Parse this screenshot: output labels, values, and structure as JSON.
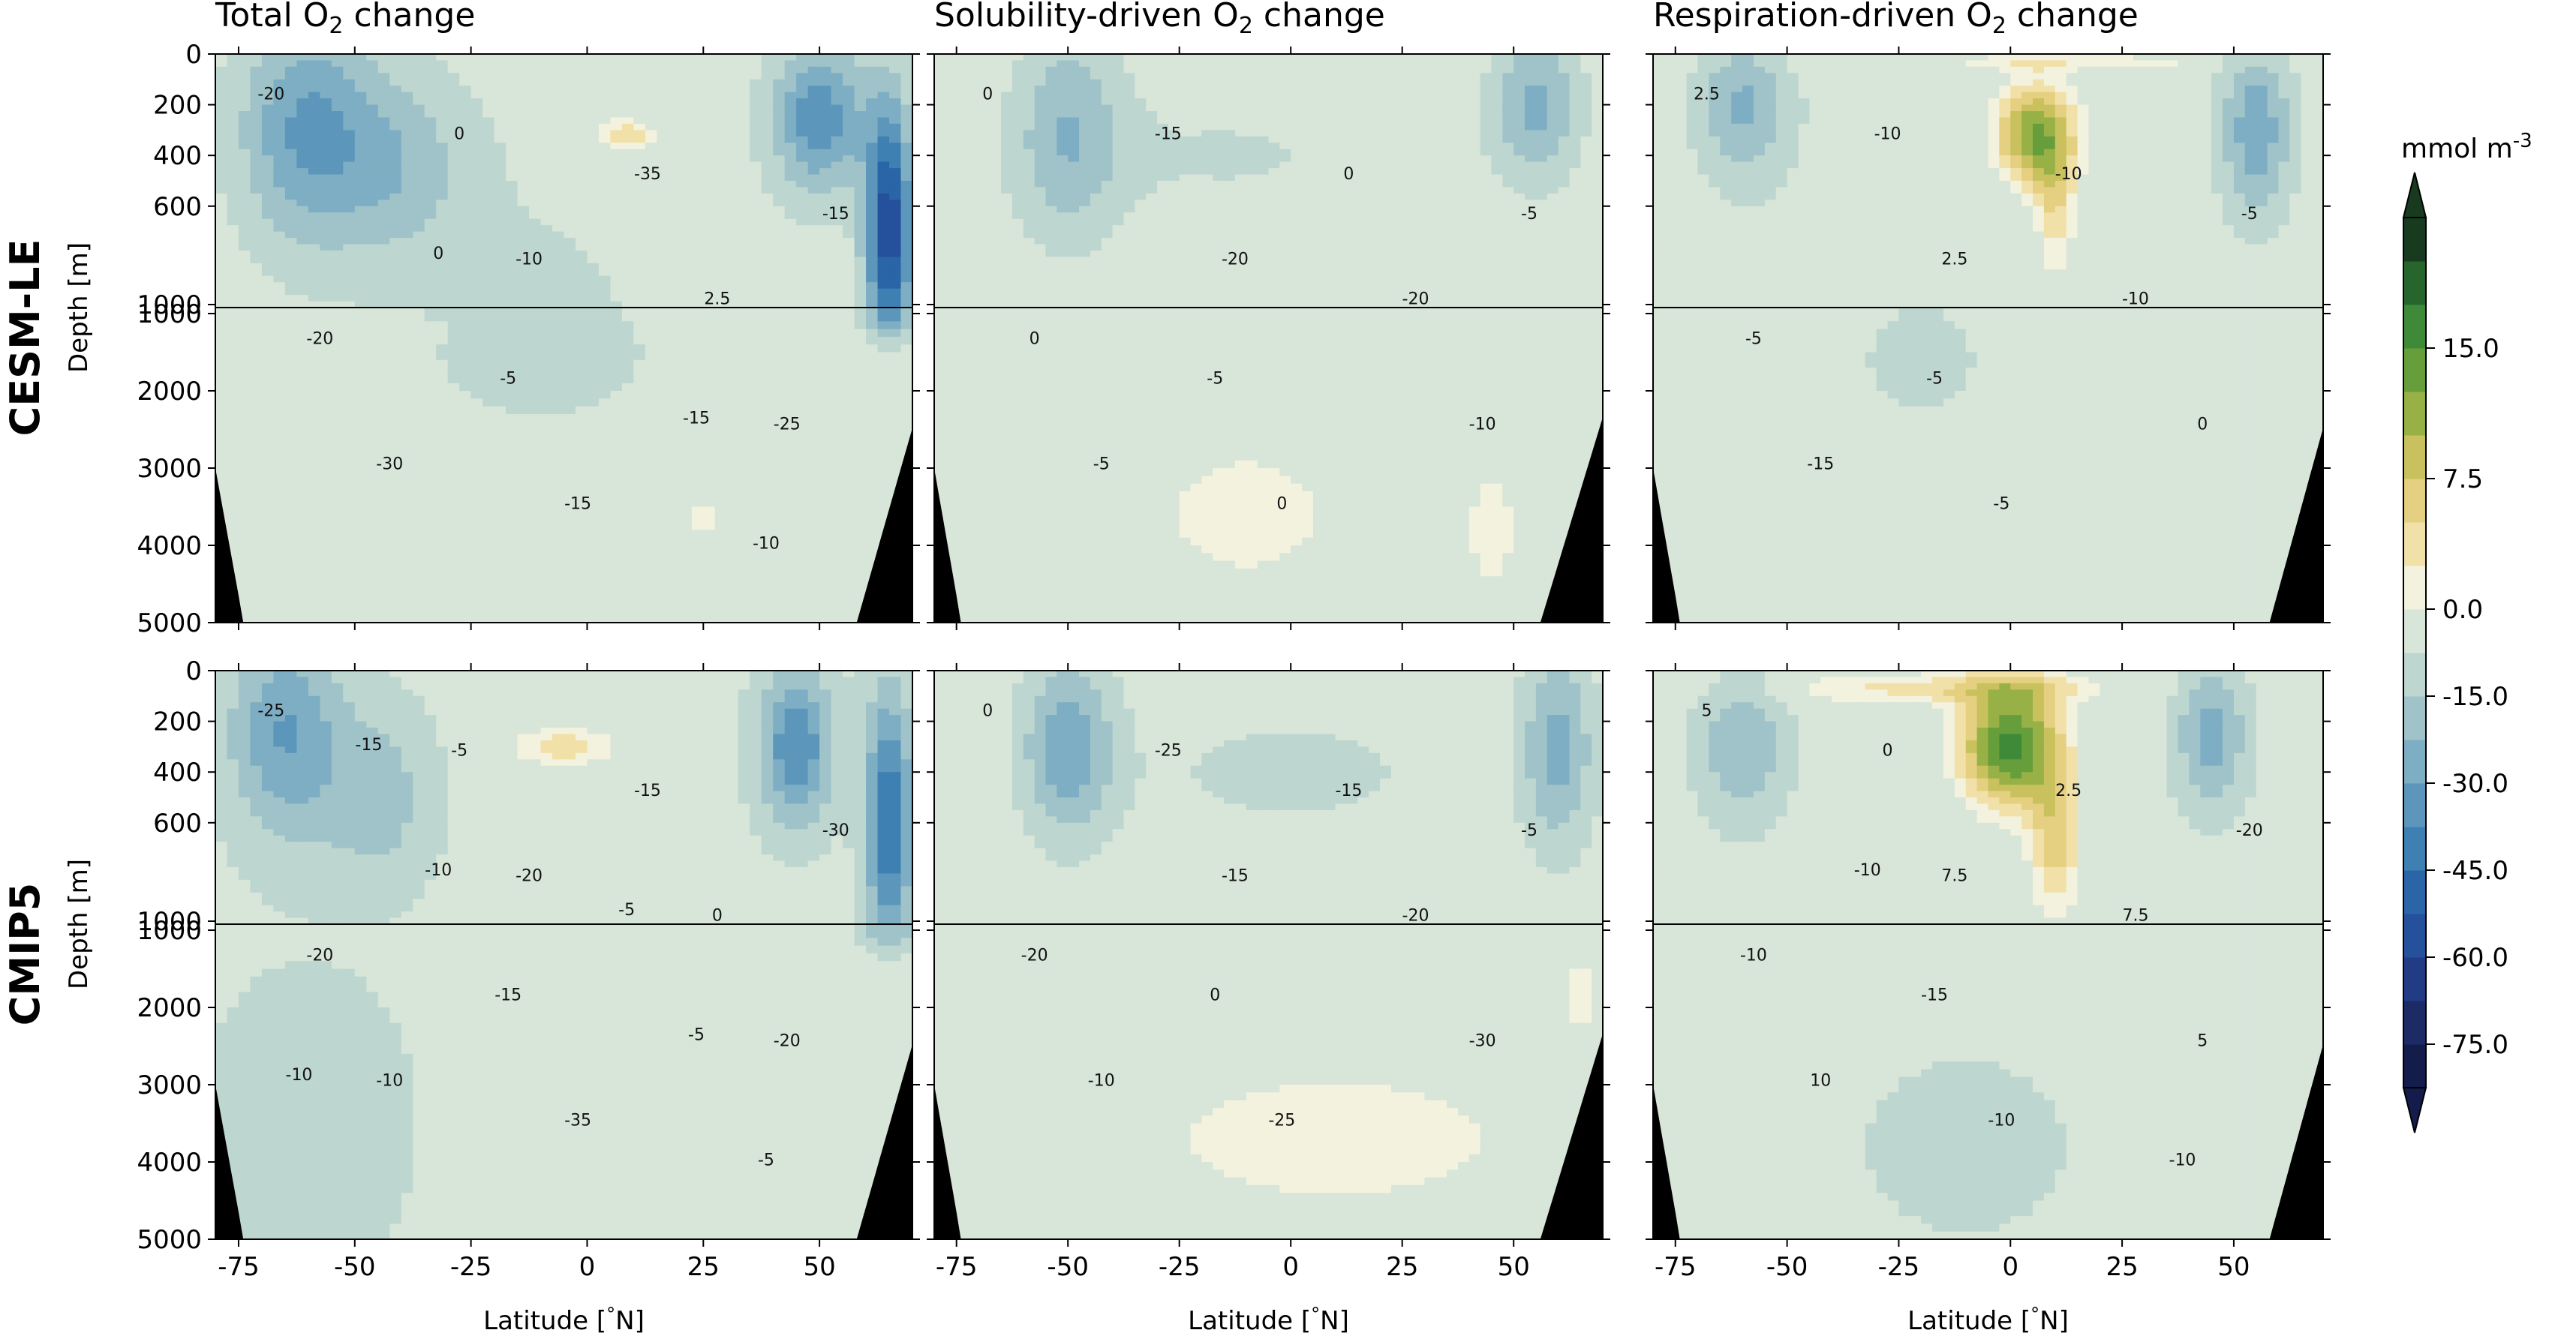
{
  "chart_data": {
    "type": "heatmap",
    "description_rows": [
      "CESM-LE",
      "CMIP5"
    ],
    "columns": [
      {
        "title_parts": [
          "Total O",
          "2",
          " change"
        ]
      },
      {
        "title_parts": [
          "Solubility-driven O",
          "2",
          " change"
        ]
      },
      {
        "title_parts": [
          "Respiration-driven O",
          "2",
          " change"
        ]
      }
    ],
    "xlabel": "Latitude [°N]",
    "xlabel_parts": [
      "Latitude [",
      "°",
      "N]"
    ],
    "ylabel": "Depth [m]",
    "xlim": [
      -80,
      70
    ],
    "x_ticks": [
      -75,
      -50,
      -25,
      0,
      25,
      50
    ],
    "upper_depth_range": [
      0,
      1000
    ],
    "upper_depth_ticks": [
      0,
      200,
      400,
      600,
      1000
    ],
    "lower_depth_range": [
      1000,
      5000
    ],
    "lower_depth_ticks": [
      1000,
      2000,
      3000,
      4000,
      5000
    ],
    "colorbar": {
      "label": "mmol m",
      "label_sup": "-3",
      "ticks": [
        "15.0",
        "7.5",
        "0.0",
        "-15.0",
        "-30.0",
        "-45.0",
        "-60.0",
        "-75.0"
      ],
      "levels": [
        -82.5,
        -75,
        -67.5,
        -60,
        -52.5,
        -45,
        -37.5,
        -30,
        -22.5,
        -15,
        -7.5,
        0,
        2.5,
        5,
        7.5,
        10,
        12.5,
        15,
        17.5,
        20
      ],
      "colors": [
        "#131c4a",
        "#1c2a66",
        "#223b85",
        "#24509c",
        "#2a65a8",
        "#3f80b2",
        "#5c97bb",
        "#7eaec3",
        "#9fc3c8",
        "#bed6d0",
        "#d8e5d9",
        "#f3f2de",
        "#f1e1a8",
        "#e5cf80",
        "#c9c15d",
        "#97b147",
        "#679e3c",
        "#3f8a39",
        "#26662d",
        "#183b1f"
      ]
    },
    "panels": [
      {
        "row": "CESM-LE",
        "column": "Total O2 change",
        "contour_labels": [
          "-20",
          "-10",
          "-25",
          "0",
          "2.5",
          "-30",
          "-35",
          "-20",
          "-15",
          "-15",
          "-5",
          "-10",
          "0",
          "-15"
        ],
        "features": "Broad negative changes (-10 to -35) in the upper ocean, strongest near 60°S and 40-60°N; small positive pocket (0 to 2.5) near 0-15°N at 200-400 m; deep ocean mostly -5 to 0 with small positive patches near 25°N and 50°N."
      },
      {
        "row": "CESM-LE",
        "column": "Solubility-driven O2 change",
        "contour_labels": [
          "0",
          "-20",
          "-10",
          "-15",
          "-20",
          "-5",
          "0",
          "0",
          "0",
          "-5",
          "-5"
        ],
        "features": "Upper ocean -5 to -20, most negative near 50°S and 50°N; deep ocean near zero with positive regions between 30°S-10°N and near 45°N at 2500-5000 m."
      },
      {
        "row": "CESM-LE",
        "column": "Respiration-driven O2 change",
        "contour_labels": [
          "2.5",
          "2.5",
          "0",
          "-10",
          "-10",
          "-15",
          "-10",
          "-5",
          "-5",
          "-5",
          "-5"
        ],
        "features": "Strong positive changes (up to ~15) in the tropics between 10°S and 15°N at 200-700 m; positive near-surface band; negatives (-10 to -35) near 60°S and 50°N; deep ocean small negative."
      },
      {
        "row": "CMIP5",
        "column": "Total O2 change",
        "contour_labels": [
          "-25",
          "-20",
          "-20",
          "-5",
          "0",
          "-10",
          "-15",
          "-20",
          "-35",
          "-30",
          "-15",
          "-5",
          "-10",
          "-5",
          "-15",
          "-5",
          "-10"
        ],
        "features": "Negative upper ocean values (-10 to -35), strongest near 60°S and 40-50°N; positive pocket near 25°S-15°N at 200-400 m; deep ocean -5 to -15 with a small positive spot near 25°S at 2000 m."
      },
      {
        "row": "CMIP5",
        "column": "Solubility-driven O2 change",
        "contour_labels": [
          "0",
          "-15",
          "-30",
          "-25",
          "-20",
          "-10",
          "-15",
          "-20",
          "-25",
          "-5",
          "0"
        ],
        "features": "Upper ocean -5 to -30, most negative near 50°S and 60°N; deep ocean has a broad positive region between 40°S and 50°N below 2300 m."
      },
      {
        "row": "CMIP5",
        "column": "Respiration-driven O2 change",
        "contour_labels": [
          "5",
          "7.5",
          "5",
          "0",
          "7.5",
          "10",
          "2.5",
          "-10",
          "-10",
          "-20",
          "-15",
          "-10",
          "-10"
        ],
        "features": "Positive upper ocean band 0-150 m; strong positive (up to ~20) between 15°S and 15°N at 100-700 m; negatives near 60°S and 45°N; deep ocean mostly small negative with small positive spot near 25°S at 2000 m."
      }
    ]
  }
}
